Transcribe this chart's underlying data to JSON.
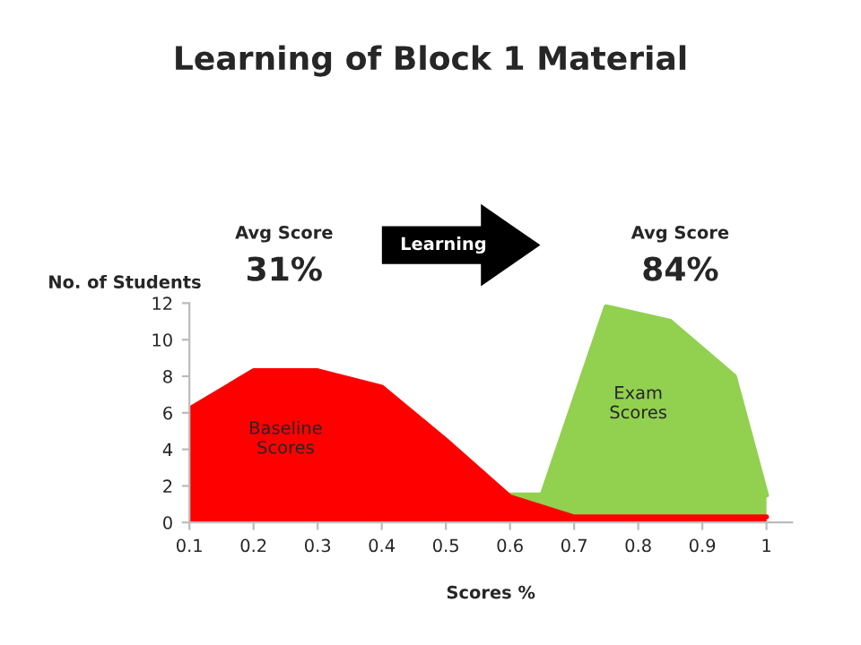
{
  "chart_data": {
    "type": "area",
    "title": "Learning of Block 1 Material",
    "xlabel": "Scores %",
    "ylabel": "No. of Students",
    "annotations": [
      "Avg Score",
      "31%",
      "Learning",
      "Avg Score",
      "84%"
    ],
    "series": [
      {
        "name": "Exam Scores",
        "color": "#92d050",
        "x": [
          0.6,
          0.65,
          0.75,
          0.85,
          0.95,
          1.0
        ],
        "values": [
          1.5,
          1.5,
          11.8,
          11,
          8,
          1.5
        ]
      },
      {
        "name": "Baseline Scores",
        "color": "#ff0000",
        "x": [
          0.1,
          0.2,
          0.3,
          0.4,
          0.5,
          0.6,
          0.7,
          0.8,
          0.9,
          1.0
        ],
        "values": [
          6.2,
          8.3,
          8.3,
          7.4,
          4.5,
          1.4,
          0.3,
          0.3,
          0.3,
          0.3
        ]
      }
    ],
    "xlim": [
      0.1,
      1.04
    ],
    "xticks": [
      0.1,
      0.2,
      0.3,
      0.4,
      0.5,
      0.6,
      0.7,
      0.8,
      0.9,
      {
        "value": 1.0,
        "label": "1"
      }
    ],
    "ylim": [
      0,
      12
    ],
    "yticks": [
      0,
      2,
      4,
      6,
      8,
      10,
      12
    ],
    "grid": false,
    "legend": false
  }
}
